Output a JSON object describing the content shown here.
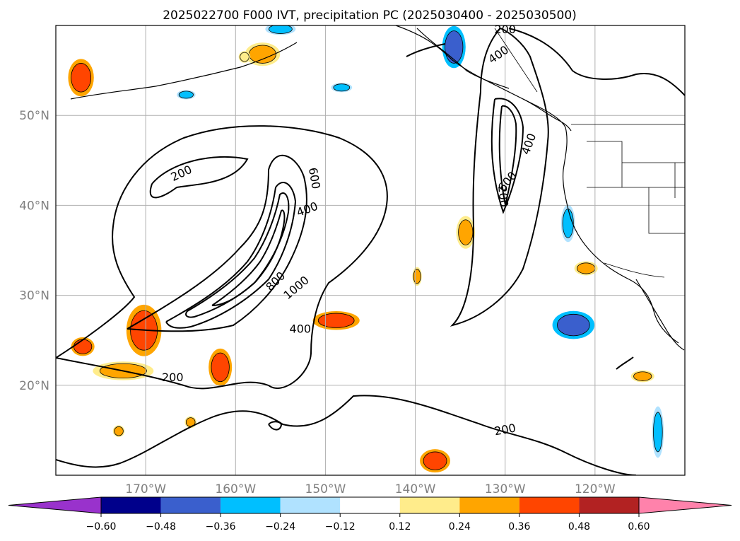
{
  "chart_data": {
    "type": "map",
    "title": "2025022700 F000 IVT, precipitation PC (2025030400 - 2025030500)",
    "projection": "PlateCarree",
    "extent": {
      "lon_min": -180,
      "lon_max": -110,
      "lat_min": 10,
      "lat_max": 60
    },
    "grid": true,
    "x_ticks": [
      {
        "lon": -170,
        "label": "170°W"
      },
      {
        "lon": -160,
        "label": "160°W"
      },
      {
        "lon": -150,
        "label": "150°W"
      },
      {
        "lon": -140,
        "label": "140°W"
      },
      {
        "lon": -130,
        "label": "130°W"
      },
      {
        "lon": -120,
        "label": "120°W"
      }
    ],
    "y_ticks": [
      {
        "lat": 20,
        "label": "20°N"
      },
      {
        "lat": 30,
        "label": "30°N"
      },
      {
        "lat": 40,
        "label": "40°N"
      },
      {
        "lat": 50,
        "label": "50°N"
      }
    ],
    "ivt_contours": {
      "levels": [
        200,
        400,
        600,
        800,
        1000
      ],
      "labels": [
        {
          "text": "200",
          "lon": -166,
          "lat": 43.5,
          "angle": -25
        },
        {
          "text": "200",
          "lon": -167,
          "lat": 20.8,
          "angle": 0
        },
        {
          "text": "200",
          "lon": -130,
          "lat": 15,
          "angle": -10
        },
        {
          "text": "200",
          "lon": -130.3,
          "lat": 41,
          "angle": 85
        },
        {
          "text": "200",
          "lon": -130,
          "lat": 59.5,
          "angle": 0
        },
        {
          "text": "400",
          "lon": -152,
          "lat": 39.5,
          "angle": -20
        },
        {
          "text": "400",
          "lon": -152.8,
          "lat": 26.2,
          "angle": 0
        },
        {
          "text": "400",
          "lon": -130.7,
          "lat": 56.7,
          "angle": -35
        },
        {
          "text": "400",
          "lon": -127.3,
          "lat": 46.8,
          "angle": -70
        },
        {
          "text": "600",
          "lon": -151.3,
          "lat": 43,
          "angle": 80
        },
        {
          "text": "600",
          "lon": -129.7,
          "lat": 42.6,
          "angle": -50
        },
        {
          "text": "800",
          "lon": -155.5,
          "lat": 31.5,
          "angle": -45
        },
        {
          "text": "1000",
          "lon": -153.2,
          "lat": 30.8,
          "angle": -40
        }
      ]
    },
    "precip_pc": {
      "colorbar": {
        "levels": [
          -0.6,
          -0.48,
          -0.36,
          -0.24,
          -0.12,
          0.12,
          0.24,
          0.36,
          0.48,
          0.6
        ],
        "tick_labels": [
          "−0.60",
          "−0.48",
          "−0.36",
          "−0.24",
          "−0.12",
          "0.12",
          "0.24",
          "0.36",
          "0.48",
          "0.60"
        ],
        "colors": [
          "#9932cc",
          "#00008b",
          "#3a5fcd",
          "#00bfff",
          "#b0e2ff",
          "#ffffff",
          "#ffec8b",
          "#ffa500",
          "#ff4500",
          "#b22222",
          "#ff82ab"
        ],
        "extend": "both"
      },
      "patches": [
        {
          "lon": -177.2,
          "lat": 54.2,
          "rx": 1.1,
          "ry": 1.6,
          "level": 0.36
        },
        {
          "lon": -170.2,
          "lat": 26.1,
          "rx": 1.5,
          "ry": 2.2,
          "level": 0.36
        },
        {
          "lon": -177.0,
          "lat": 24.3,
          "rx": 1.0,
          "ry": 0.8,
          "level": 0.36
        },
        {
          "lon": -172.5,
          "lat": 21.6,
          "rx": 2.6,
          "ry": 0.8,
          "level": 0.24
        },
        {
          "lon": -161.7,
          "lat": 22.0,
          "rx": 1.0,
          "ry": 1.6,
          "level": 0.36
        },
        {
          "lon": -148.8,
          "lat": 27.2,
          "rx": 2.0,
          "ry": 0.8,
          "level": 0.36
        },
        {
          "lon": -134.4,
          "lat": 37.0,
          "rx": 0.8,
          "ry": 1.4,
          "level": 0.24
        },
        {
          "lon": -137.8,
          "lat": 11.6,
          "rx": 1.3,
          "ry": 1.0,
          "level": 0.36
        },
        {
          "lon": -157.0,
          "lat": 56.8,
          "rx": 1.5,
          "ry": 1.0,
          "level": 0.24
        },
        {
          "lon": -122.4,
          "lat": 26.7,
          "rx": 1.8,
          "ry": 1.2,
          "level": -0.36
        },
        {
          "lon": -135.7,
          "lat": 57.6,
          "rx": 1.0,
          "ry": 1.8,
          "level": -0.36
        },
        {
          "lon": -123.0,
          "lat": 38.0,
          "rx": 0.6,
          "ry": 1.6,
          "level": -0.24
        },
        {
          "lon": -155.0,
          "lat": 59.6,
          "rx": 1.3,
          "ry": 0.5,
          "level": -0.24
        },
        {
          "lon": -113.0,
          "lat": 14.8,
          "rx": 0.5,
          "ry": 2.2,
          "level": -0.24
        },
        {
          "lon": -165.5,
          "lat": 52.3,
          "rx": 0.8,
          "ry": 0.4,
          "level": -0.24
        },
        {
          "lon": -148.2,
          "lat": 53.1,
          "rx": 0.9,
          "ry": 0.4,
          "level": -0.24
        },
        {
          "lon": -159.0,
          "lat": 56.5,
          "rx": 0.5,
          "ry": 0.5,
          "level": 0.12
        },
        {
          "lon": -114.7,
          "lat": 21.0,
          "rx": 1.0,
          "ry": 0.5,
          "level": 0.24
        },
        {
          "lon": -121.0,
          "lat": 33.0,
          "rx": 1.0,
          "ry": 0.6,
          "level": 0.24
        },
        {
          "lon": -139.8,
          "lat": 32.1,
          "rx": 0.4,
          "ry": 0.8,
          "level": 0.24
        },
        {
          "lon": -165.0,
          "lat": 15.9,
          "rx": 0.5,
          "ry": 0.5,
          "level": 0.24
        },
        {
          "lon": -173.0,
          "lat": 14.9,
          "rx": 0.5,
          "ry": 0.5,
          "level": 0.24
        }
      ]
    }
  }
}
